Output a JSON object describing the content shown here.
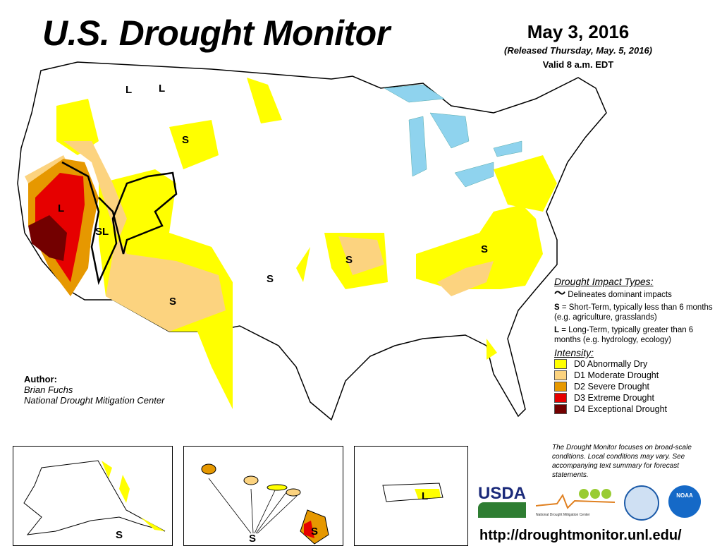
{
  "header": {
    "title": "U.S. Drought Monitor",
    "date": "May 3, 2016",
    "released": "(Released Thursday, May. 5, 2016)",
    "valid": "Valid 8 a.m. EDT"
  },
  "legend": {
    "impact_title": "Drought Impact Types:",
    "delineates": "Delineates dominant impacts",
    "short_term_key": "S",
    "short_term": " = Short-Term, typically less than 6 months (e.g. agriculture, grasslands)",
    "long_term_key": "L",
    "long_term": " = Long-Term, typically greater than 6 months (e.g. hydrology, ecology)",
    "intensity_title": "Intensity:",
    "items": [
      {
        "label": "D0 Abnormally Dry",
        "color": "#ffff00"
      },
      {
        "label": "D1 Moderate Drought",
        "color": "#fcd37f"
      },
      {
        "label": "D2 Severe Drought",
        "color": "#e69800"
      },
      {
        "label": "D3 Extreme Drought",
        "color": "#e60000"
      },
      {
        "label": "D4 Exceptional Drought",
        "color": "#730000"
      }
    ]
  },
  "disclaimer": "The Drought Monitor focuses on broad-scale conditions. Local conditions may vary. See accompanying text summary for forecast statements.",
  "author": {
    "label": "Author:",
    "name": "Brian Fuchs",
    "org": "National Drought Mitigation Center"
  },
  "url": "http://droughtmonitor.unl.edu/",
  "logos": {
    "usda": "USDA",
    "ndmc": "National Drought Mitigation Center",
    "noaa": "NOAA"
  },
  "map_labels": {
    "l1": "L",
    "l2": "L",
    "s_mt": "S",
    "l_ca": "L",
    "sl_nv": "SL",
    "s_az": "S",
    "s_ok": "S",
    "s_mo": "S",
    "s_va": "S",
    "s_ak": "S",
    "s_hi1": "S",
    "s_hi2": "S",
    "l_pr": "L"
  },
  "water_color": "#8fd3ee"
}
